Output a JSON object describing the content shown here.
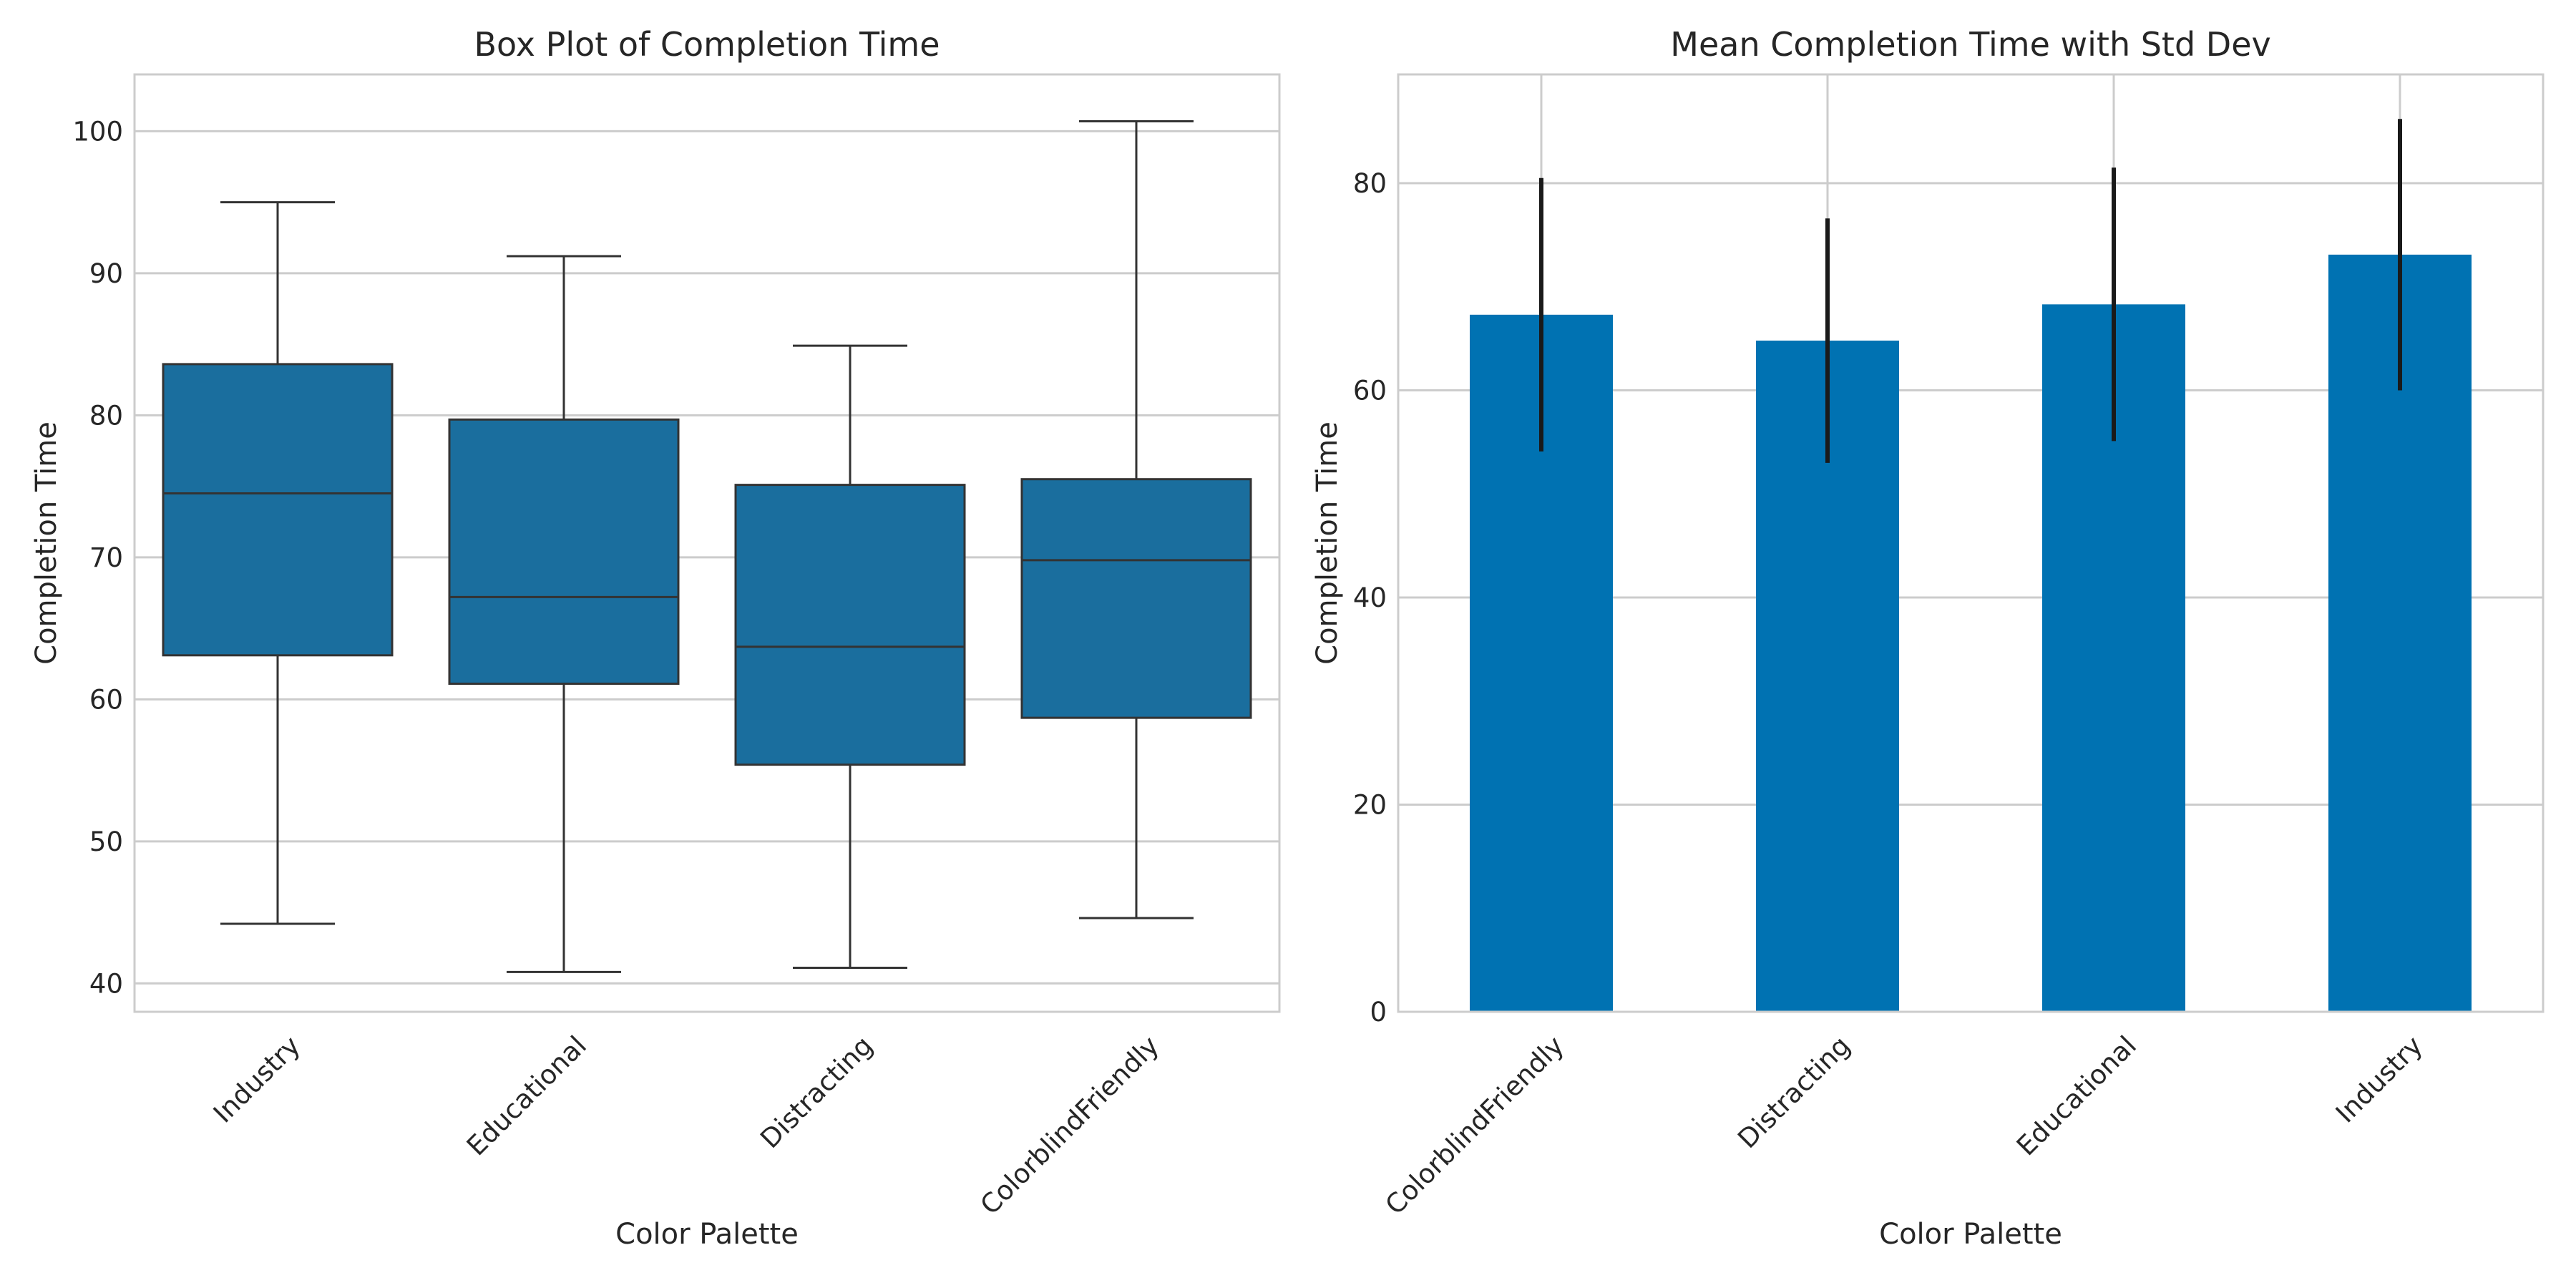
{
  "chart_data": [
    {
      "type": "box",
      "title": "Box Plot of Completion Time",
      "xlabel": "Color Palette",
      "ylabel": "Completion Time",
      "ylim": [
        38,
        104
      ],
      "yticks": [
        40,
        50,
        60,
        70,
        80,
        90,
        100
      ],
      "grid": true,
      "color": "#1a6e9e",
      "categories": [
        "Industry",
        "Educational",
        "Distracting",
        "ColorblindFriendly"
      ],
      "boxes": [
        {
          "category": "Industry",
          "whisker_low": 44.2,
          "q1": 63.1,
          "median": 74.5,
          "q3": 83.6,
          "whisker_high": 95.0
        },
        {
          "category": "Educational",
          "whisker_low": 40.8,
          "q1": 61.1,
          "median": 67.2,
          "q3": 79.7,
          "whisker_high": 91.2
        },
        {
          "category": "Distracting",
          "whisker_low": 41.1,
          "q1": 55.4,
          "median": 63.7,
          "q3": 75.1,
          "whisker_high": 84.9
        },
        {
          "category": "ColorblindFriendly",
          "whisker_low": 44.6,
          "q1": 58.7,
          "median": 69.8,
          "q3": 75.5,
          "whisker_high": 100.7
        }
      ]
    },
    {
      "type": "bar",
      "title": "Mean Completion Time with Std Dev",
      "xlabel": "Color Palette",
      "ylabel": "Completion Time",
      "ylim": [
        0,
        90.5
      ],
      "yticks": [
        0,
        20,
        40,
        60,
        80
      ],
      "grid": true,
      "color": "#0072b2",
      "error_color": "#1a1a1a",
      "categories": [
        "ColorblindFriendly",
        "Distracting",
        "Educational",
        "Industry"
      ],
      "values": [
        67.3,
        64.8,
        68.3,
        73.1
      ],
      "errors": [
        13.2,
        11.8,
        13.2,
        13.1
      ]
    }
  ]
}
